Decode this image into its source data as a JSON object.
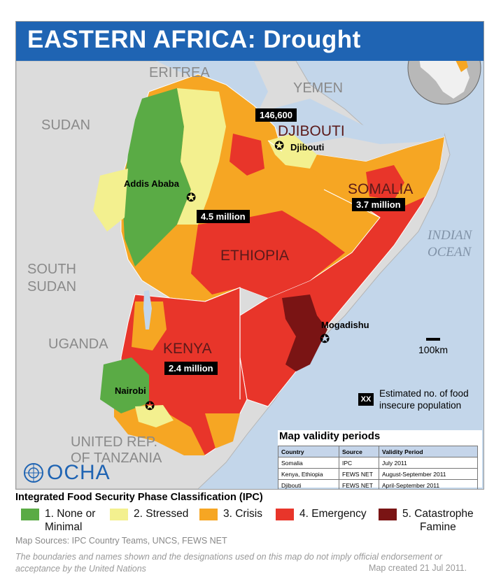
{
  "map": {
    "title": "EASTERN AFRICA: Drought",
    "country_labels": {
      "eritrea": "ERITREA",
      "yemen": "YEMEN",
      "sudan": "SUDAN",
      "south_sudan_1": "SOUTH",
      "south_sudan_2": "SUDAN",
      "uganda": "UGANDA",
      "tanzania_1": "UNITED REP.",
      "tanzania_2": "OF TANZANIA",
      "djibouti": "DJIBOUTI",
      "ethiopia": "ETHIOPIA",
      "somalia": "SOMALIA",
      "kenya": "KENYA"
    },
    "ocean_label": {
      "line1": "INDIAN",
      "line2": "OCEAN"
    },
    "cities": {
      "addis_ababa": "Addis Ababa",
      "djibouti": "Djibouti",
      "mogadishu": "Mogadishu",
      "nairobi": "Nairobi"
    },
    "populations": {
      "djibouti": "146,600",
      "ethiopia": "4.5 million",
      "somalia": "3.7 million",
      "kenya": "2.4 million"
    },
    "scale": "100km",
    "key_box": "XX",
    "key_text_1": "Estimated no. of food",
    "key_text_2": "insecure population",
    "logo": "OCHA"
  },
  "validity": {
    "title": "Map validity periods",
    "headers": [
      "Country",
      "Source",
      "Validity Period"
    ],
    "rows": [
      [
        "Somalia",
        "IPC",
        "July 2011"
      ],
      [
        "Kenya, Ethiopia",
        "FEWS NET",
        "August-September 2011"
      ],
      [
        "Djibouti",
        "FEWS NET",
        "April-September 2011"
      ]
    ]
  },
  "legend": {
    "title": "Integrated Food Security Phase Classification (IPC)",
    "items": [
      {
        "line1": "1. None or",
        "line2": "Minimal",
        "color": "#5aab45"
      },
      {
        "line1": "2. Stressed",
        "line2": "",
        "color": "#f3f08f"
      },
      {
        "line1": "3. Crisis",
        "line2": "",
        "color": "#f6a623"
      },
      {
        "line1": "4. Emergency",
        "line2": "",
        "color": "#e8352a"
      },
      {
        "line1": "5. Catastrophe",
        "line2": "Famine",
        "color": "#7a1414"
      }
    ]
  },
  "footer": {
    "sources": "Map Sources: IPC Country Teams, UNCS, FEWS NET",
    "disclaimer": "The boundaries and names shown and the designations used on this map do not imply official endorsement or acceptance by the United Nations",
    "created": "Map created 21 Jul 2011."
  }
}
